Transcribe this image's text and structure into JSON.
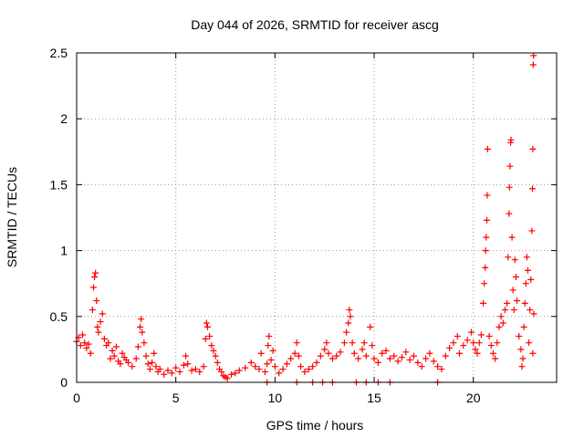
{
  "chart_data": {
    "type": "scatter",
    "title": "Day 044 of 2026, SRMTID for receiver ascg",
    "xlabel": "GPS time / hours",
    "ylabel": "SRMTID / TECUs",
    "xlim": [
      0,
      24.2
    ],
    "ylim": [
      0,
      2.5
    ],
    "xticks": [
      0,
      5,
      10,
      15,
      20
    ],
    "xtick_labels": [
      "0",
      "5",
      "10",
      "15",
      "20"
    ],
    "yticks": [
      0,
      0.5,
      1,
      1.5,
      2,
      2.5
    ],
    "ytick_labels": [
      "0",
      "0.5",
      "1",
      "1.5",
      "2",
      "2.5"
    ],
    "grid": true,
    "marker": "+",
    "series": [
      {
        "name": "SRMTID",
        "color": "#ff0000",
        "points": [
          [
            0.0,
            0.31
          ],
          [
            0.1,
            0.34
          ],
          [
            0.2,
            0.28
          ],
          [
            0.3,
            0.36
          ],
          [
            0.4,
            0.3
          ],
          [
            0.5,
            0.26
          ],
          [
            0.6,
            0.29
          ],
          [
            0.7,
            0.22
          ],
          [
            0.8,
            0.55
          ],
          [
            0.85,
            0.72
          ],
          [
            0.9,
            0.8
          ],
          [
            0.95,
            0.83
          ],
          [
            1.0,
            0.62
          ],
          [
            1.05,
            0.42
          ],
          [
            1.1,
            0.38
          ],
          [
            1.2,
            0.46
          ],
          [
            1.3,
            0.52
          ],
          [
            1.4,
            0.33
          ],
          [
            1.5,
            0.28
          ],
          [
            1.6,
            0.3
          ],
          [
            1.7,
            0.18
          ],
          [
            1.8,
            0.24
          ],
          [
            1.9,
            0.2
          ],
          [
            2.0,
            0.27
          ],
          [
            2.1,
            0.16
          ],
          [
            2.2,
            0.14
          ],
          [
            2.3,
            0.22
          ],
          [
            2.4,
            0.19
          ],
          [
            2.5,
            0.17
          ],
          [
            2.6,
            0.15
          ],
          [
            2.8,
            0.12
          ],
          [
            3.0,
            0.18
          ],
          [
            3.1,
            0.27
          ],
          [
            3.2,
            0.42
          ],
          [
            3.25,
            0.48
          ],
          [
            3.3,
            0.38
          ],
          [
            3.4,
            0.3
          ],
          [
            3.5,
            0.2
          ],
          [
            3.6,
            0.14
          ],
          [
            3.7,
            0.1
          ],
          [
            3.8,
            0.15
          ],
          [
            3.9,
            0.22
          ],
          [
            4.0,
            0.12
          ],
          [
            4.1,
            0.08
          ],
          [
            4.2,
            0.1
          ],
          [
            4.4,
            0.06
          ],
          [
            4.6,
            0.09
          ],
          [
            4.8,
            0.07
          ],
          [
            5.0,
            0.11
          ],
          [
            5.2,
            0.08
          ],
          [
            5.4,
            0.13
          ],
          [
            5.5,
            0.2
          ],
          [
            5.6,
            0.14
          ],
          [
            5.8,
            0.09
          ],
          [
            6.0,
            0.1
          ],
          [
            6.2,
            0.08
          ],
          [
            6.4,
            0.12
          ],
          [
            6.5,
            0.33
          ],
          [
            6.55,
            0.45
          ],
          [
            6.6,
            0.42
          ],
          [
            6.7,
            0.35
          ],
          [
            6.8,
            0.28
          ],
          [
            6.9,
            0.24
          ],
          [
            7.0,
            0.2
          ],
          [
            7.1,
            0.15
          ],
          [
            7.2,
            0.1
          ],
          [
            7.3,
            0.08
          ],
          [
            7.4,
            0.05
          ],
          [
            7.5,
            0.04
          ],
          [
            7.6,
            0.03
          ],
          [
            7.8,
            0.06
          ],
          [
            8.0,
            0.07
          ],
          [
            8.2,
            0.09
          ],
          [
            8.5,
            0.11
          ],
          [
            8.8,
            0.15
          ],
          [
            9.0,
            0.12
          ],
          [
            9.2,
            0.1
          ],
          [
            9.3,
            0.22
          ],
          [
            9.5,
            0.08
          ],
          [
            9.6,
            0.14
          ],
          [
            9.65,
            0.28
          ],
          [
            9.7,
            0.35
          ],
          [
            9.8,
            0.17
          ],
          [
            9.9,
            0.24
          ],
          [
            10.0,
            0.12
          ],
          [
            10.2,
            0.07
          ],
          [
            10.4,
            0.1
          ],
          [
            10.6,
            0.14
          ],
          [
            10.8,
            0.18
          ],
          [
            11.0,
            0.22
          ],
          [
            11.1,
            0.3
          ],
          [
            11.2,
            0.2
          ],
          [
            11.3,
            0.12
          ],
          [
            11.5,
            0.08
          ],
          [
            11.7,
            0.1
          ],
          [
            11.9,
            0.12
          ],
          [
            12.1,
            0.15
          ],
          [
            12.3,
            0.2
          ],
          [
            12.5,
            0.25
          ],
          [
            12.6,
            0.3
          ],
          [
            12.7,
            0.22
          ],
          [
            12.9,
            0.18
          ],
          [
            13.1,
            0.2
          ],
          [
            13.3,
            0.23
          ],
          [
            13.5,
            0.3
          ],
          [
            13.6,
            0.38
          ],
          [
            13.7,
            0.45
          ],
          [
            13.75,
            0.55
          ],
          [
            13.8,
            0.5
          ],
          [
            13.9,
            0.3
          ],
          [
            14.0,
            0.22
          ],
          [
            14.2,
            0.18
          ],
          [
            14.4,
            0.25
          ],
          [
            14.5,
            0.3
          ],
          [
            14.6,
            0.2
          ],
          [
            14.8,
            0.42
          ],
          [
            14.9,
            0.28
          ],
          [
            15.0,
            0.18
          ],
          [
            15.2,
            0.15
          ],
          [
            15.4,
            0.22
          ],
          [
            15.6,
            0.24
          ],
          [
            15.8,
            0.18
          ],
          [
            16.0,
            0.2
          ],
          [
            16.2,
            0.16
          ],
          [
            16.4,
            0.19
          ],
          [
            16.6,
            0.23
          ],
          [
            16.8,
            0.17
          ],
          [
            17.0,
            0.2
          ],
          [
            17.2,
            0.15
          ],
          [
            17.4,
            0.12
          ],
          [
            17.6,
            0.18
          ],
          [
            17.8,
            0.22
          ],
          [
            18.0,
            0.16
          ],
          [
            18.2,
            0.12
          ],
          [
            18.4,
            0.1
          ],
          [
            18.6,
            0.2
          ],
          [
            18.8,
            0.26
          ],
          [
            19.0,
            0.3
          ],
          [
            19.2,
            0.35
          ],
          [
            19.3,
            0.22
          ],
          [
            19.5,
            0.28
          ],
          [
            19.7,
            0.32
          ],
          [
            19.9,
            0.38
          ],
          [
            20.0,
            0.3
          ],
          [
            20.1,
            0.25
          ],
          [
            20.2,
            0.22
          ],
          [
            20.3,
            0.3
          ],
          [
            20.4,
            0.36
          ],
          [
            20.5,
            0.6
          ],
          [
            20.55,
            0.75
          ],
          [
            20.6,
            0.87
          ],
          [
            20.62,
            1.0
          ],
          [
            20.65,
            1.1
          ],
          [
            20.68,
            1.23
          ],
          [
            20.7,
            1.42
          ],
          [
            20.72,
            1.77
          ],
          [
            20.8,
            0.35
          ],
          [
            20.9,
            0.28
          ],
          [
            21.0,
            0.22
          ],
          [
            21.1,
            0.18
          ],
          [
            21.2,
            0.3
          ],
          [
            21.3,
            0.42
          ],
          [
            21.4,
            0.5
          ],
          [
            21.5,
            0.45
          ],
          [
            21.6,
            0.55
          ],
          [
            21.7,
            0.6
          ],
          [
            21.75,
            0.95
          ],
          [
            21.8,
            1.28
          ],
          [
            21.82,
            1.48
          ],
          [
            21.85,
            1.64
          ],
          [
            21.88,
            1.82
          ],
          [
            21.9,
            1.84
          ],
          [
            21.95,
            1.1
          ],
          [
            22.0,
            0.7
          ],
          [
            22.05,
            0.55
          ],
          [
            22.1,
            0.93
          ],
          [
            22.15,
            0.8
          ],
          [
            22.2,
            0.62
          ],
          [
            22.3,
            0.35
          ],
          [
            22.4,
            0.25
          ],
          [
            22.45,
            0.12
          ],
          [
            22.5,
            0.18
          ],
          [
            22.55,
            0.42
          ],
          [
            22.6,
            0.6
          ],
          [
            22.65,
            0.75
          ],
          [
            22.7,
            0.95
          ],
          [
            22.75,
            0.85
          ],
          [
            22.8,
            0.3
          ],
          [
            22.85,
            0.55
          ],
          [
            22.9,
            0.78
          ],
          [
            22.95,
            1.15
          ],
          [
            22.98,
            1.47
          ],
          [
            23.0,
            1.77
          ],
          [
            23.02,
            2.41
          ],
          [
            23.04,
            2.48
          ],
          [
            23.05,
            0.52
          ],
          [
            23.0,
            0.22
          ]
        ],
        "zero_points_x": [
          9.6,
          11.1,
          11.9,
          12.4,
          12.9,
          14.1,
          14.6,
          15.2,
          15.8,
          18.2
        ]
      }
    ]
  }
}
